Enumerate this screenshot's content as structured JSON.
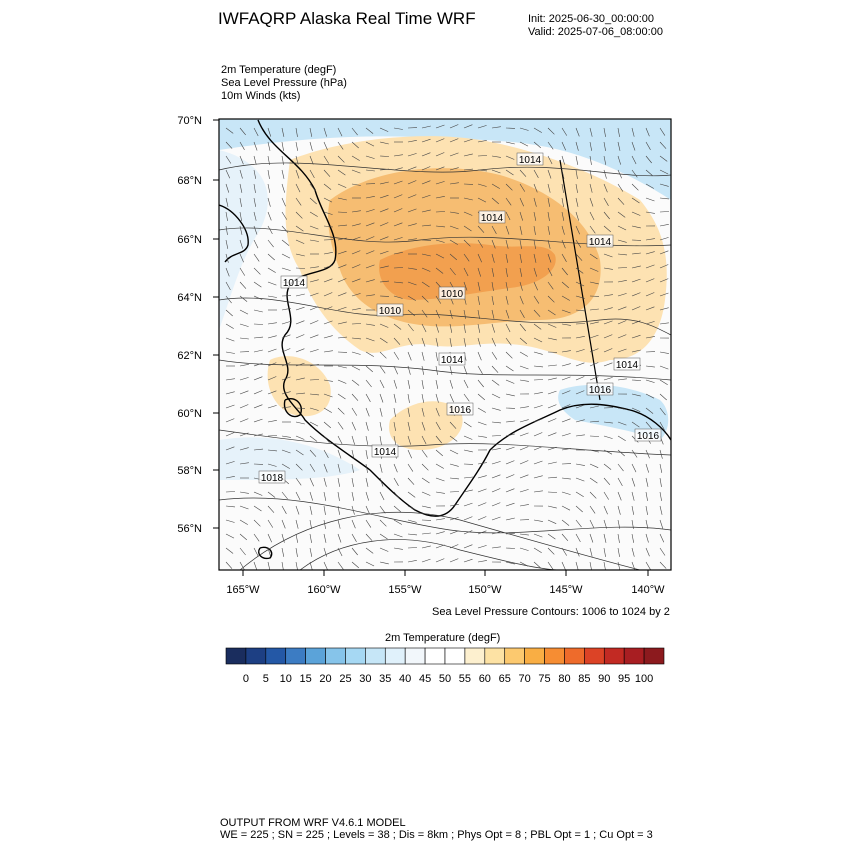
{
  "header": {
    "title": "IWFAQRP Alaska Real Time WRF",
    "init": "Init: 2025-06-30_00:00:00",
    "valid": "Valid: 2025-07-06_08:00:00"
  },
  "variables": [
    "2m Temperature   (degF)",
    "Sea Level Pressure   (hPa)",
    "10m Winds   (kts)"
  ],
  "map": {
    "lat_labels": [
      "70°N",
      "68°N",
      "66°N",
      "64°N",
      "62°N",
      "60°N",
      "58°N",
      "56°N"
    ],
    "lon_labels": [
      "165°W",
      "160°W",
      "155°W",
      "150°W",
      "145°W",
      "140°W"
    ],
    "pressure_labels": [
      "1014",
      "1014",
      "1014",
      "1014",
      "1010",
      "1010",
      "1014",
      "1014",
      "1016",
      "1016",
      "1014",
      "1018",
      "1016"
    ],
    "colors": {
      "cold": "#c8e6f7",
      "cool": "#e6f2fa",
      "mild": "#fbfbfb",
      "warm": "#fde2b2",
      "hot": "#f6bd72",
      "hotter": "#f2a04f"
    }
  },
  "contour_note": "Sea Level Pressure Contours: 1006 to 1024 by 2",
  "colorbar": {
    "title": "2m Temperature  (degF)",
    "labels": [
      "0",
      "5",
      "10",
      "15",
      "20",
      "25",
      "30",
      "35",
      "40",
      "45",
      "50",
      "55",
      "60",
      "65",
      "70",
      "75",
      "80",
      "85",
      "90",
      "95",
      "100"
    ],
    "colors": [
      "#1a2d5e",
      "#1d3f83",
      "#2458a6",
      "#3c7cc3",
      "#5ba3d9",
      "#86c4ea",
      "#a6d8f3",
      "#c6e6f7",
      "#e0f1fb",
      "#f2f7fb",
      "#ffffff",
      "#ffffff",
      "#fdf0cf",
      "#fde2a4",
      "#fcc96f",
      "#f9ae44",
      "#f68d33",
      "#ee6b2b",
      "#dc4326",
      "#c22a23",
      "#a81e22",
      "#8c1a1e"
    ]
  },
  "footer": {
    "line1": "OUTPUT FROM WRF V4.6.1 MODEL",
    "line2": "WE = 225 ; SN = 225 ; Levels = 38 ; Dis = 8km ; Phys Opt = 8 ; PBL Opt = 1 ; Cu Opt = 3"
  }
}
